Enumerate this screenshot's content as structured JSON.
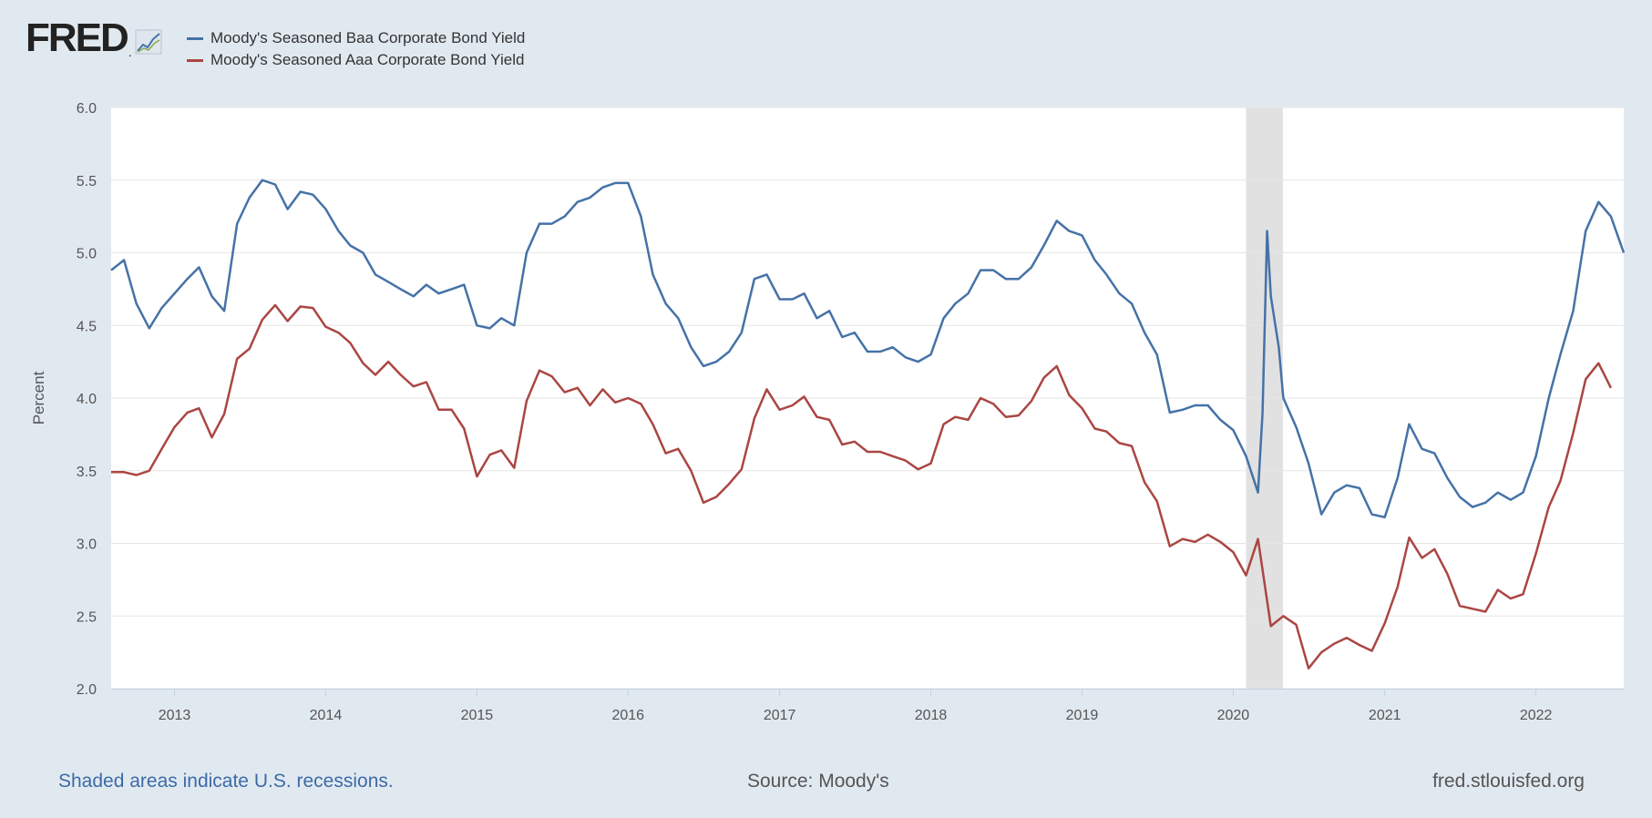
{
  "logo": {
    "text": "FRED",
    "dot": "."
  },
  "legend": [
    {
      "label": "Moody's Seasoned Baa Corporate Bond Yield",
      "color": "#4572a7"
    },
    {
      "label": "Moody's Seasoned Aaa Corporate Bond Yield",
      "color": "#aa4643"
    }
  ],
  "footer": {
    "recessions": "Shaded areas indicate U.S. recessions.",
    "source": "Source: Moody's",
    "site": "fred.stlouisfed.org"
  },
  "chart_data": {
    "type": "line",
    "ylabel": "Percent",
    "ylim": [
      2.0,
      6.0
    ],
    "yticks": [
      "2.0",
      "2.5",
      "3.0",
      "3.5",
      "4.0",
      "4.5",
      "5.0",
      "5.5",
      "6.0"
    ],
    "xlim": [
      "2012-08-01",
      "2022-08-01"
    ],
    "xticks": [
      "2013",
      "2014",
      "2015",
      "2016",
      "2017",
      "2018",
      "2019",
      "2020",
      "2021",
      "2022"
    ],
    "grid": true,
    "recessions": [
      {
        "start": "2020-02-01",
        "end": "2020-04-30"
      }
    ],
    "series": [
      {
        "name": "Moody's Seasoned Baa Corporate Bond Yield",
        "color": "#4572a7",
        "points": [
          [
            "2012-08-01",
            4.88
          ],
          [
            "2012-09-01",
            4.95
          ],
          [
            "2012-10-01",
            4.65
          ],
          [
            "2012-11-01",
            4.48
          ],
          [
            "2012-12-01",
            4.62
          ],
          [
            "2013-01-01",
            4.72
          ],
          [
            "2013-02-01",
            4.82
          ],
          [
            "2013-03-01",
            4.9
          ],
          [
            "2013-04-01",
            4.7
          ],
          [
            "2013-05-01",
            4.6
          ],
          [
            "2013-06-01",
            5.2
          ],
          [
            "2013-07-01",
            5.38
          ],
          [
            "2013-08-01",
            5.5
          ],
          [
            "2013-09-01",
            5.47
          ],
          [
            "2013-10-01",
            5.3
          ],
          [
            "2013-11-01",
            5.42
          ],
          [
            "2013-12-01",
            5.4
          ],
          [
            "2014-01-01",
            5.3
          ],
          [
            "2014-02-01",
            5.15
          ],
          [
            "2014-03-01",
            5.05
          ],
          [
            "2014-04-01",
            5.0
          ],
          [
            "2014-05-01",
            4.85
          ],
          [
            "2014-06-01",
            4.8
          ],
          [
            "2014-07-01",
            4.75
          ],
          [
            "2014-08-01",
            4.7
          ],
          [
            "2014-09-01",
            4.78
          ],
          [
            "2014-10-01",
            4.72
          ],
          [
            "2014-11-01",
            4.75
          ],
          [
            "2014-12-01",
            4.78
          ],
          [
            "2015-01-01",
            4.5
          ],
          [
            "2015-02-01",
            4.48
          ],
          [
            "2015-03-01",
            4.55
          ],
          [
            "2015-04-01",
            4.5
          ],
          [
            "2015-05-01",
            5.0
          ],
          [
            "2015-06-01",
            5.2
          ],
          [
            "2015-07-01",
            5.2
          ],
          [
            "2015-08-01",
            5.25
          ],
          [
            "2015-09-01",
            5.35
          ],
          [
            "2015-10-01",
            5.38
          ],
          [
            "2015-11-01",
            5.45
          ],
          [
            "2015-12-01",
            5.48
          ],
          [
            "2016-01-01",
            5.48
          ],
          [
            "2016-02-01",
            5.25
          ],
          [
            "2016-03-01",
            4.85
          ],
          [
            "2016-04-01",
            4.65
          ],
          [
            "2016-05-01",
            4.55
          ],
          [
            "2016-06-01",
            4.35
          ],
          [
            "2016-07-01",
            4.22
          ],
          [
            "2016-08-01",
            4.25
          ],
          [
            "2016-09-01",
            4.32
          ],
          [
            "2016-10-01",
            4.45
          ],
          [
            "2016-11-01",
            4.82
          ],
          [
            "2016-12-01",
            4.85
          ],
          [
            "2017-01-01",
            4.68
          ],
          [
            "2017-02-01",
            4.68
          ],
          [
            "2017-03-01",
            4.72
          ],
          [
            "2017-04-01",
            4.55
          ],
          [
            "2017-05-01",
            4.6
          ],
          [
            "2017-06-01",
            4.42
          ],
          [
            "2017-07-01",
            4.45
          ],
          [
            "2017-08-01",
            4.32
          ],
          [
            "2017-09-01",
            4.32
          ],
          [
            "2017-10-01",
            4.35
          ],
          [
            "2017-11-01",
            4.28
          ],
          [
            "2017-12-01",
            4.25
          ],
          [
            "2018-01-01",
            4.3
          ],
          [
            "2018-02-01",
            4.55
          ],
          [
            "2018-03-01",
            4.65
          ],
          [
            "2018-04-01",
            4.72
          ],
          [
            "2018-05-01",
            4.88
          ],
          [
            "2018-06-01",
            4.88
          ],
          [
            "2018-07-01",
            4.82
          ],
          [
            "2018-08-01",
            4.82
          ],
          [
            "2018-09-01",
            4.9
          ],
          [
            "2018-10-01",
            5.05
          ],
          [
            "2018-11-01",
            5.22
          ],
          [
            "2018-12-01",
            5.15
          ],
          [
            "2019-01-01",
            5.12
          ],
          [
            "2019-02-01",
            4.95
          ],
          [
            "2019-03-01",
            4.85
          ],
          [
            "2019-04-01",
            4.72
          ],
          [
            "2019-05-01",
            4.65
          ],
          [
            "2019-06-01",
            4.45
          ],
          [
            "2019-07-01",
            4.3
          ],
          [
            "2019-08-01",
            3.9
          ],
          [
            "2019-09-01",
            3.92
          ],
          [
            "2019-10-01",
            3.95
          ],
          [
            "2019-11-01",
            3.95
          ],
          [
            "2019-12-01",
            3.85
          ],
          [
            "2020-01-01",
            3.78
          ],
          [
            "2020-02-01",
            3.6
          ],
          [
            "2020-03-01",
            3.35
          ],
          [
            "2020-03-12",
            3.9
          ],
          [
            "2020-03-23",
            5.15
          ],
          [
            "2020-04-01",
            4.7
          ],
          [
            "2020-04-20",
            4.35
          ],
          [
            "2020-05-01",
            4.0
          ],
          [
            "2020-06-01",
            3.8
          ],
          [
            "2020-07-01",
            3.55
          ],
          [
            "2020-08-01",
            3.2
          ],
          [
            "2020-09-01",
            3.35
          ],
          [
            "2020-10-01",
            3.4
          ],
          [
            "2020-11-01",
            3.38
          ],
          [
            "2020-12-01",
            3.2
          ],
          [
            "2021-01-01",
            3.18
          ],
          [
            "2021-02-01",
            3.45
          ],
          [
            "2021-03-01",
            3.82
          ],
          [
            "2021-04-01",
            3.65
          ],
          [
            "2021-05-01",
            3.62
          ],
          [
            "2021-06-01",
            3.45
          ],
          [
            "2021-07-01",
            3.32
          ],
          [
            "2021-08-01",
            3.25
          ],
          [
            "2021-09-01",
            3.28
          ],
          [
            "2021-10-01",
            3.35
          ],
          [
            "2021-11-01",
            3.3
          ],
          [
            "2021-12-01",
            3.35
          ],
          [
            "2022-01-01",
            3.6
          ],
          [
            "2022-02-01",
            4.0
          ],
          [
            "2022-03-01",
            4.3
          ],
          [
            "2022-04-01",
            4.6
          ],
          [
            "2022-05-01",
            5.15
          ],
          [
            "2022-06-01",
            5.35
          ],
          [
            "2022-07-01",
            5.25
          ],
          [
            "2022-08-01",
            5.0
          ]
        ]
      },
      {
        "name": "Moody's Seasoned Aaa Corporate Bond Yield",
        "color": "#aa4643",
        "points": [
          [
            "2012-08-01",
            3.49
          ],
          [
            "2012-09-01",
            3.49
          ],
          [
            "2012-10-01",
            3.47
          ],
          [
            "2012-11-01",
            3.5
          ],
          [
            "2012-12-01",
            3.65
          ],
          [
            "2013-01-01",
            3.8
          ],
          [
            "2013-02-01",
            3.9
          ],
          [
            "2013-03-01",
            3.93
          ],
          [
            "2013-04-01",
            3.73
          ],
          [
            "2013-05-01",
            3.89
          ],
          [
            "2013-06-01",
            4.27
          ],
          [
            "2013-07-01",
            4.34
          ],
          [
            "2013-08-01",
            4.54
          ],
          [
            "2013-09-01",
            4.64
          ],
          [
            "2013-10-01",
            4.53
          ],
          [
            "2013-11-01",
            4.63
          ],
          [
            "2013-12-01",
            4.62
          ],
          [
            "2014-01-01",
            4.49
          ],
          [
            "2014-02-01",
            4.45
          ],
          [
            "2014-03-01",
            4.38
          ],
          [
            "2014-04-01",
            4.24
          ],
          [
            "2014-05-01",
            4.16
          ],
          [
            "2014-06-01",
            4.25
          ],
          [
            "2014-07-01",
            4.16
          ],
          [
            "2014-08-01",
            4.08
          ],
          [
            "2014-09-01",
            4.11
          ],
          [
            "2014-10-01",
            3.92
          ],
          [
            "2014-11-01",
            3.92
          ],
          [
            "2014-12-01",
            3.79
          ],
          [
            "2015-01-01",
            3.46
          ],
          [
            "2015-02-01",
            3.61
          ],
          [
            "2015-03-01",
            3.64
          ],
          [
            "2015-04-01",
            3.52
          ],
          [
            "2015-05-01",
            3.98
          ],
          [
            "2015-06-01",
            4.19
          ],
          [
            "2015-07-01",
            4.15
          ],
          [
            "2015-08-01",
            4.04
          ],
          [
            "2015-09-01",
            4.07
          ],
          [
            "2015-10-01",
            3.95
          ],
          [
            "2015-11-01",
            4.06
          ],
          [
            "2015-12-01",
            3.97
          ],
          [
            "2016-01-01",
            4.0
          ],
          [
            "2016-02-01",
            3.96
          ],
          [
            "2016-03-01",
            3.82
          ],
          [
            "2016-04-01",
            3.62
          ],
          [
            "2016-05-01",
            3.65
          ],
          [
            "2016-06-01",
            3.5
          ],
          [
            "2016-07-01",
            3.28
          ],
          [
            "2016-08-01",
            3.32
          ],
          [
            "2016-09-01",
            3.41
          ],
          [
            "2016-10-01",
            3.51
          ],
          [
            "2016-11-01",
            3.86
          ],
          [
            "2016-12-01",
            4.06
          ],
          [
            "2017-01-01",
            3.92
          ],
          [
            "2017-02-01",
            3.95
          ],
          [
            "2017-03-01",
            4.01
          ],
          [
            "2017-04-01",
            3.87
          ],
          [
            "2017-05-01",
            3.85
          ],
          [
            "2017-06-01",
            3.68
          ],
          [
            "2017-07-01",
            3.7
          ],
          [
            "2017-08-01",
            3.63
          ],
          [
            "2017-09-01",
            3.63
          ],
          [
            "2017-10-01",
            3.6
          ],
          [
            "2017-11-01",
            3.57
          ],
          [
            "2017-12-01",
            3.51
          ],
          [
            "2018-01-01",
            3.55
          ],
          [
            "2018-02-01",
            3.82
          ],
          [
            "2018-03-01",
            3.87
          ],
          [
            "2018-04-01",
            3.85
          ],
          [
            "2018-05-01",
            4.0
          ],
          [
            "2018-06-01",
            3.96
          ],
          [
            "2018-07-01",
            3.87
          ],
          [
            "2018-08-01",
            3.88
          ],
          [
            "2018-09-01",
            3.98
          ],
          [
            "2018-10-01",
            4.14
          ],
          [
            "2018-11-01",
            4.22
          ],
          [
            "2018-12-01",
            4.02
          ],
          [
            "2019-01-01",
            3.93
          ],
          [
            "2019-02-01",
            3.79
          ],
          [
            "2019-03-01",
            3.77
          ],
          [
            "2019-04-01",
            3.69
          ],
          [
            "2019-05-01",
            3.67
          ],
          [
            "2019-06-01",
            3.42
          ],
          [
            "2019-07-01",
            3.29
          ],
          [
            "2019-08-01",
            2.98
          ],
          [
            "2019-09-01",
            3.03
          ],
          [
            "2019-10-01",
            3.01
          ],
          [
            "2019-11-01",
            3.06
          ],
          [
            "2019-12-01",
            3.01
          ],
          [
            "2020-01-01",
            2.94
          ],
          [
            "2020-02-01",
            2.78
          ],
          [
            "2020-03-01",
            3.03
          ],
          [
            "2020-04-01",
            2.43
          ],
          [
            "2020-05-01",
            2.5
          ],
          [
            "2020-06-01",
            2.44
          ],
          [
            "2020-07-01",
            2.14
          ],
          [
            "2020-08-01",
            2.25
          ],
          [
            "2020-09-01",
            2.31
          ],
          [
            "2020-10-01",
            2.35
          ],
          [
            "2020-11-01",
            2.3
          ],
          [
            "2020-12-01",
            2.26
          ],
          [
            "2021-01-01",
            2.45
          ],
          [
            "2021-02-01",
            2.7
          ],
          [
            "2021-03-01",
            3.04
          ],
          [
            "2021-04-01",
            2.9
          ],
          [
            "2021-05-01",
            2.96
          ],
          [
            "2021-06-01",
            2.79
          ],
          [
            "2021-07-01",
            2.57
          ],
          [
            "2021-08-01",
            2.55
          ],
          [
            "2021-09-01",
            2.53
          ],
          [
            "2021-10-01",
            2.68
          ],
          [
            "2021-11-01",
            2.62
          ],
          [
            "2021-12-01",
            2.65
          ],
          [
            "2022-01-01",
            2.93
          ],
          [
            "2022-02-01",
            3.25
          ],
          [
            "2022-03-01",
            3.43
          ],
          [
            "2022-04-01",
            3.76
          ],
          [
            "2022-05-01",
            4.13
          ],
          [
            "2022-06-01",
            4.24
          ],
          [
            "2022-07-01",
            4.07
          ]
        ]
      }
    ]
  }
}
